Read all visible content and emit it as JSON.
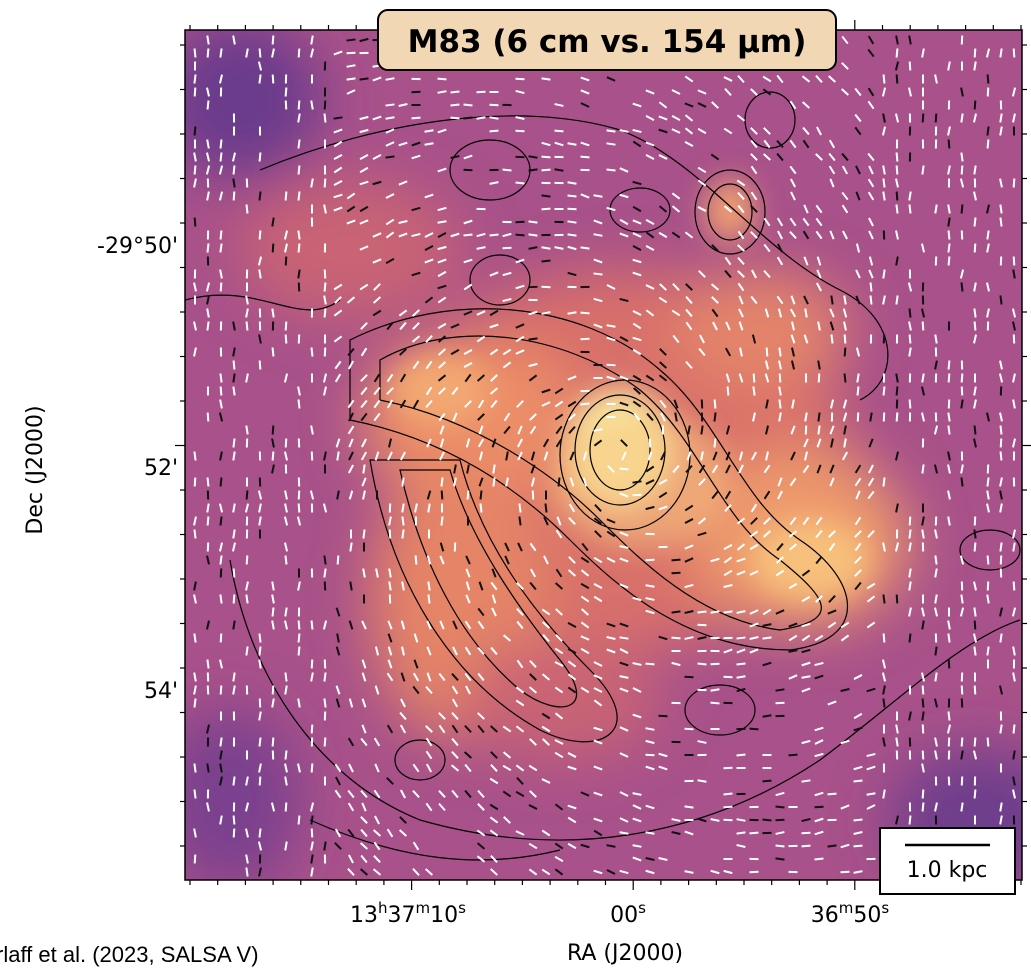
{
  "figure": {
    "title": "M83 (6 cm vs. 154 μm)",
    "x_label": "RA (J2000)",
    "y_label": "Dec (J2000)",
    "y_tick_labels": [
      "-29°50'",
      "52'",
      "54'"
    ],
    "x_tick_labels": [
      [
        "13",
        "h",
        "37",
        "m",
        "10",
        "s"
      ],
      [
        "00",
        "s"
      ],
      [
        "36",
        "m",
        "50",
        "s"
      ]
    ],
    "scale_bar_label": "1.0 kpc",
    "credit": "rlaff et al. (2023, SALSA V)"
  }
}
